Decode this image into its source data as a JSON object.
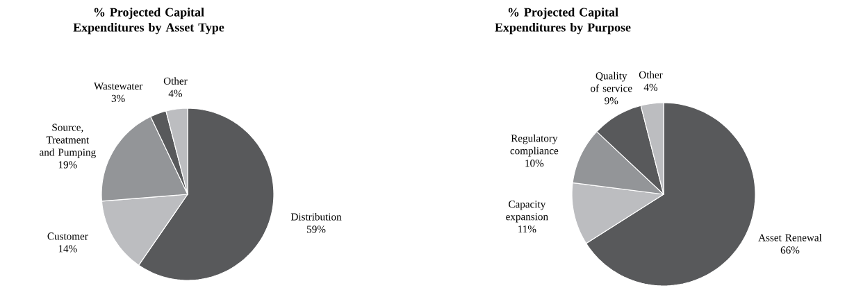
{
  "chart_data": [
    {
      "type": "pie",
      "title": "% Projected Capital Expenditures by Asset Type",
      "categories": [
        "Distribution",
        "Customer",
        "Source, Treatment and Pumping",
        "Wastewater",
        "Other"
      ],
      "values": [
        59,
        14,
        19,
        3,
        4
      ],
      "colors": [
        "#58595b",
        "#bcbdc0",
        "#939598",
        "#58595b",
        "#bcbdc0"
      ],
      "value_labels": [
        "59%",
        "14%",
        "19%",
        "3%",
        "4%"
      ]
    },
    {
      "type": "pie",
      "title": "% Projected Capital Expenditures by Purpose",
      "categories": [
        "Asset Renewal",
        "Capacity expansion",
        "Regulatory compliance",
        "Quality of service",
        "Other"
      ],
      "values": [
        66,
        11,
        10,
        9,
        4
      ],
      "colors": [
        "#58595b",
        "#bcbdc0",
        "#939598",
        "#58595b",
        "#bcbdc0"
      ],
      "value_labels": [
        "66%",
        "11%",
        "10%",
        "9%",
        "4%"
      ]
    }
  ]
}
